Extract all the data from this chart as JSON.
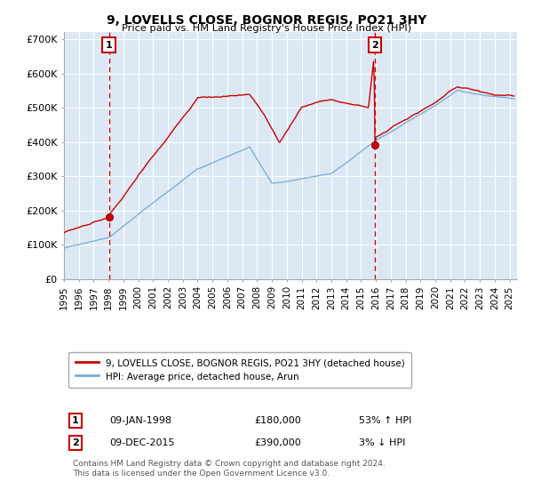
{
  "title": "9, LOVELLS CLOSE, BOGNOR REGIS, PO21 3HY",
  "subtitle": "Price paid vs. HM Land Registry's House Price Index (HPI)",
  "ylabel_ticks": [
    "£0",
    "£100K",
    "£200K",
    "£300K",
    "£400K",
    "£500K",
    "£600K",
    "£700K"
  ],
  "ytick_vals": [
    0,
    100000,
    200000,
    300000,
    400000,
    500000,
    600000,
    700000
  ],
  "ylim": [
    0,
    720000
  ],
  "xlim_start": 1995.0,
  "xlim_end": 2025.5,
  "bg_color": "#ffffff",
  "plot_bg_color": "#dce9f5",
  "grid_color": "#ffffff",
  "line1_color": "#cc0000",
  "line2_color": "#7aadd4",
  "sale1_x": 1998.03,
  "sale1_y": 180000,
  "sale1_label": "1",
  "sale2_x": 2015.92,
  "sale2_y": 390000,
  "sale2_label": "2",
  "legend_line1": "9, LOVELLS CLOSE, BOGNOR REGIS, PO21 3HY (detached house)",
  "legend_line2": "HPI: Average price, detached house, Arun",
  "annotation1_date": "09-JAN-1998",
  "annotation1_price": "£180,000",
  "annotation1_hpi": "53% ↑ HPI",
  "annotation2_date": "09-DEC-2015",
  "annotation2_price": "£390,000",
  "annotation2_hpi": "3% ↓ HPI",
  "footnote": "Contains HM Land Registry data © Crown copyright and database right 2024.\nThis data is licensed under the Open Government Licence v3.0.",
  "vline_color": "#cc0000",
  "box_edge_color": "#cc0000"
}
